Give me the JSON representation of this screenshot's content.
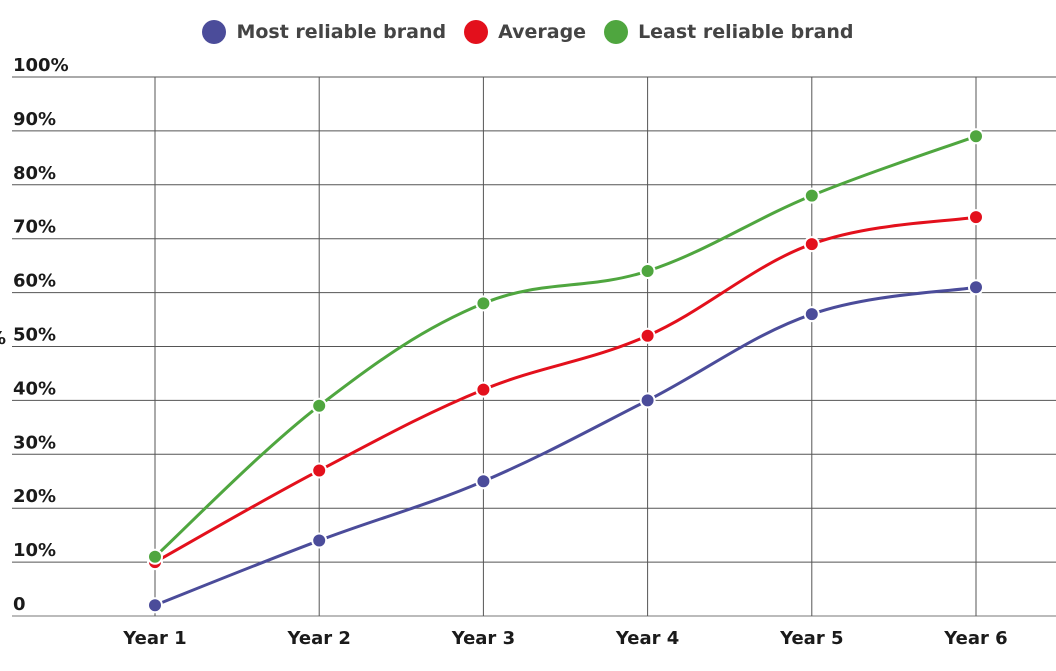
{
  "chart_data": {
    "type": "line",
    "title": "",
    "xlabel": "",
    "ylabel": "%",
    "categories": [
      "Year 1",
      "Year 2",
      "Year 3",
      "Year 4",
      "Year 5",
      "Year 6"
    ],
    "ylim": [
      0,
      100
    ],
    "yticks": [
      "0",
      "10%",
      "20%",
      "30%",
      "40%",
      "50%",
      "60%",
      "70%",
      "80%",
      "90%",
      "100%"
    ],
    "grid": true,
    "legend_position": "top-center",
    "series": [
      {
        "name": "Most reliable brand",
        "color": "#4b4c9a",
        "values": [
          2,
          14,
          25,
          40,
          56,
          61
        ]
      },
      {
        "name": "Average",
        "color": "#e3101c",
        "values": [
          10,
          27,
          42,
          52,
          69,
          74
        ]
      },
      {
        "name": "Least reliable brand",
        "color": "#4fa63f",
        "values": [
          11,
          39,
          58,
          64,
          78,
          89
        ]
      }
    ]
  }
}
